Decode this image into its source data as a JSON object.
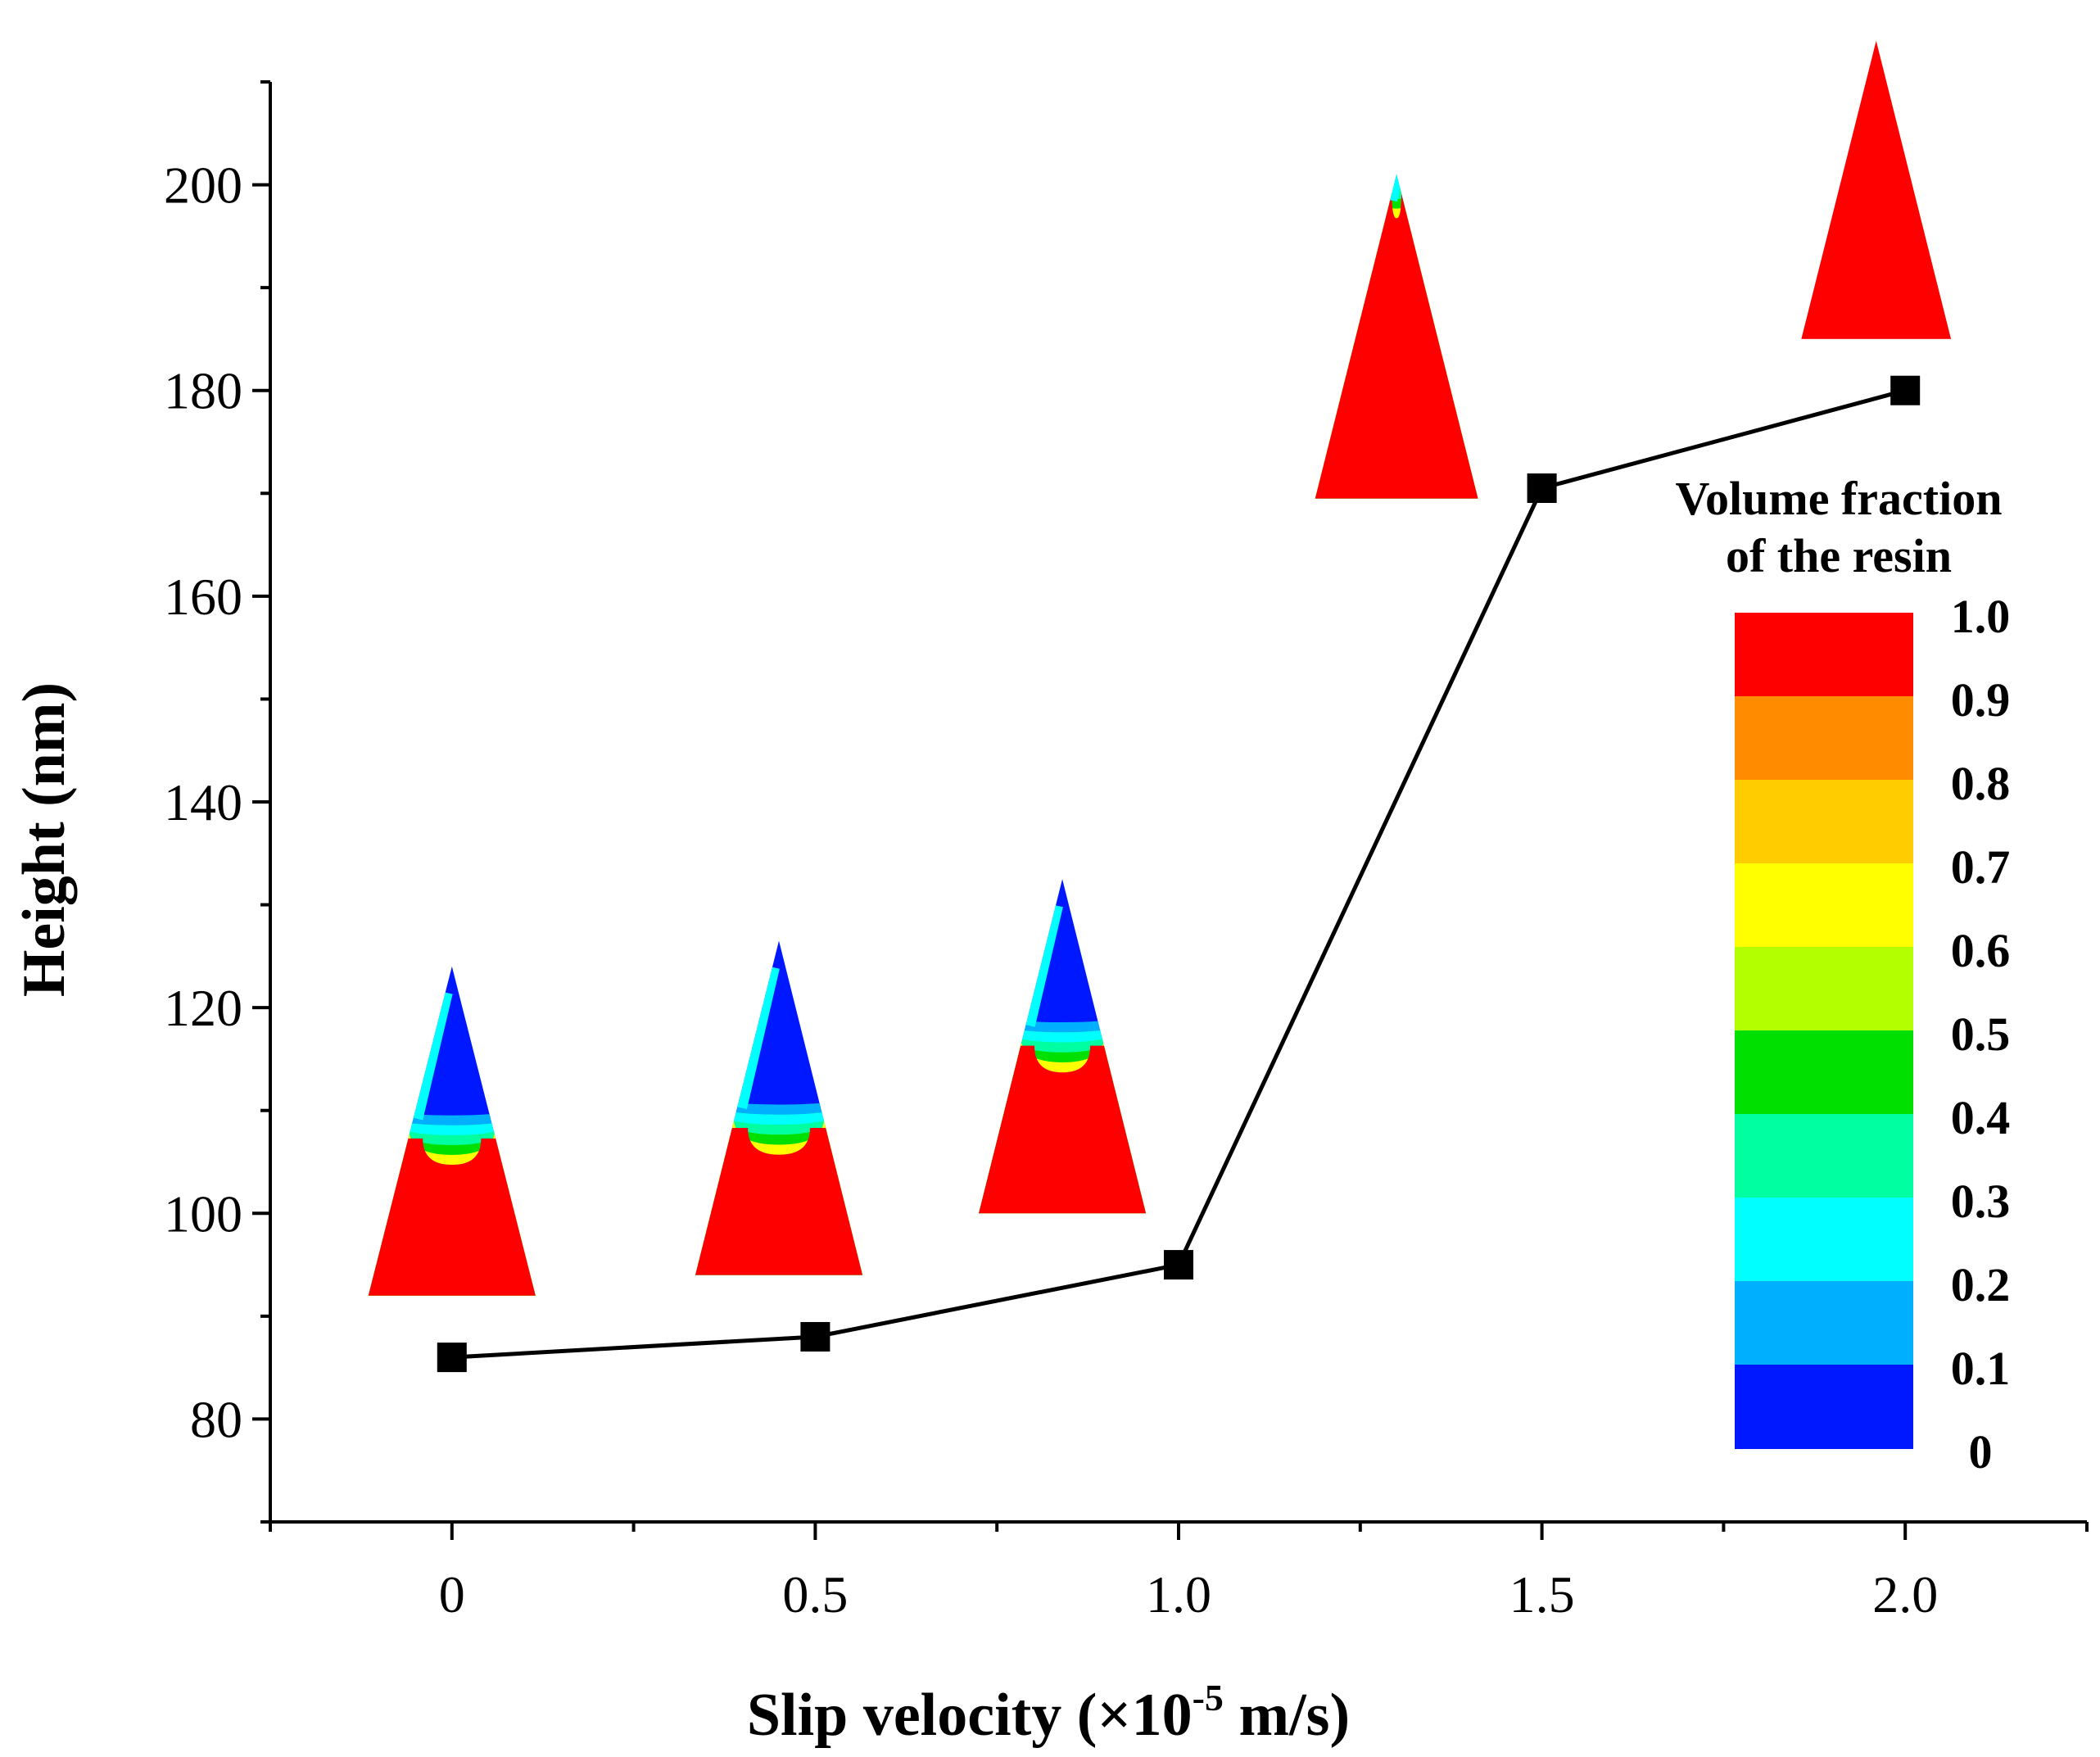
{
  "chart_data": {
    "type": "line",
    "title": "",
    "xlabel_main": "Slip velocity (×10",
    "xlabel_sup": "-5",
    "xlabel_tail": " m/s)",
    "ylabel": "Height (nm)",
    "x_ticks": [
      0,
      0.5,
      1.0,
      1.5,
      2.0
    ],
    "x_tick_labels": [
      "0",
      "0.5",
      "1.0",
      "1.5",
      "2.0"
    ],
    "y_ticks": [
      80,
      100,
      120,
      140,
      160,
      180,
      200
    ],
    "y_tick_labels": [
      "80",
      "100",
      "120",
      "140",
      "160",
      "180",
      "200"
    ],
    "xlim": [
      -0.25,
      2.25
    ],
    "ylim": [
      70,
      210
    ],
    "grid": false,
    "series": [
      {
        "color": "#000000",
        "marker": "square",
        "x": [
          0,
          0.5,
          1.0,
          1.5,
          2.0
        ],
        "y": [
          86,
          88,
          95,
          170.5,
          180
        ]
      }
    ],
    "droplet_insets": [
      {
        "x": 0,
        "base_y": 92,
        "apex_y": 124,
        "half_width": 0.115,
        "interface_y": 106,
        "fraction_at_tip": 0
      },
      {
        "x": 0.45,
        "base_y": 94,
        "apex_y": 126.5,
        "half_width": 0.115,
        "interface_y": 107,
        "fraction_at_tip": 0
      },
      {
        "x": 0.84,
        "base_y": 100,
        "apex_y": 132.5,
        "half_width": 0.115,
        "interface_y": 115,
        "fraction_at_tip": 0
      },
      {
        "x": 1.3,
        "base_y": 169.5,
        "apex_y": 201,
        "half_width": 0.112,
        "interface_y": 198,
        "fraction_at_tip": 0
      },
      {
        "x": 1.96,
        "base_y": 185,
        "apex_y": 214,
        "half_width": 0.103,
        "interface_y": null,
        "fraction_at_tip": 1.0
      }
    ],
    "legend": {
      "title_lines": [
        "Volume fraction",
        "of the resin"
      ],
      "placement": "right",
      "labels": [
        "1.0",
        "0.9",
        "0.8",
        "0.7",
        "0.6",
        "0.5",
        "0.4",
        "0.3",
        "0.2",
        "0.1",
        "0"
      ],
      "band_colors": [
        "#ff0000",
        "#ff8c00",
        "#ffcc00",
        "#ffff00",
        "#b3ff00",
        "#00e000",
        "#00ffa0",
        "#00ffff",
        "#00b0ff",
        "#0018ff"
      ]
    }
  }
}
